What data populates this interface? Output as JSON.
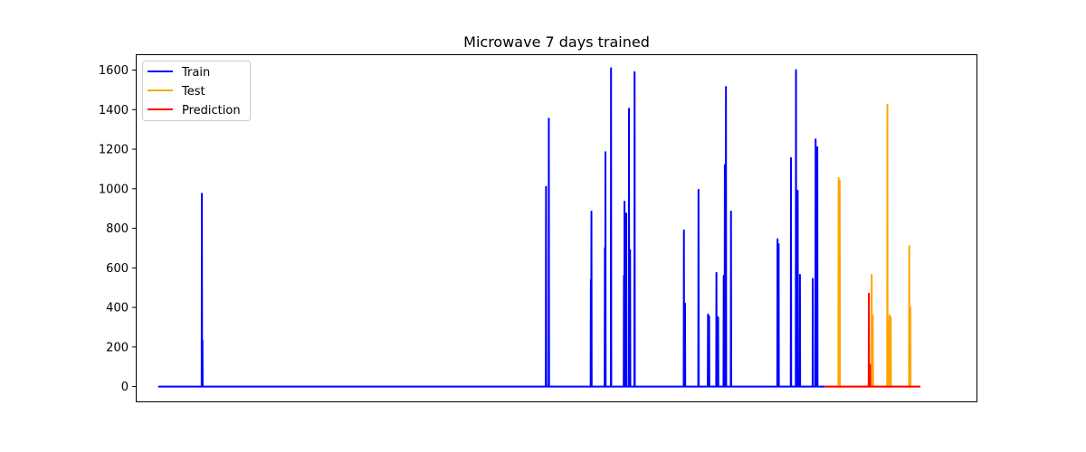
{
  "chart_data": {
    "type": "line",
    "title": "Microwave 7 days trained",
    "xlabel": "",
    "ylabel": "",
    "xlim": [
      -40,
      1460
    ],
    "ylim": [
      -75,
      1680
    ],
    "yticks": [
      0,
      200,
      400,
      600,
      800,
      1000,
      1200,
      1400,
      1600
    ],
    "grid": false,
    "legend_position": "top-left",
    "colors": {
      "Train": "#0000ff",
      "Test": "#ffa500",
      "Prediction": "#ff0000"
    },
    "series": [
      {
        "name": "Train",
        "color": "#0000ff",
        "baseline": 0,
        "x_range": [
          0,
          1190
        ],
        "spikes": [
          {
            "x": 78,
            "y": 975
          },
          {
            "x": 79,
            "y": 235
          },
          {
            "x": 692,
            "y": 1010
          },
          {
            "x": 697,
            "y": 1355
          },
          {
            "x": 772,
            "y": 540
          },
          {
            "x": 773,
            "y": 885
          },
          {
            "x": 797,
            "y": 700
          },
          {
            "x": 798,
            "y": 1185
          },
          {
            "x": 808,
            "y": 1610
          },
          {
            "x": 831,
            "y": 560
          },
          {
            "x": 832,
            "y": 935
          },
          {
            "x": 835,
            "y": 875
          },
          {
            "x": 840,
            "y": 1405
          },
          {
            "x": 842,
            "y": 690
          },
          {
            "x": 850,
            "y": 1590
          },
          {
            "x": 938,
            "y": 790
          },
          {
            "x": 940,
            "y": 420
          },
          {
            "x": 964,
            "y": 995
          },
          {
            "x": 981,
            "y": 365
          },
          {
            "x": 983,
            "y": 355
          },
          {
            "x": 996,
            "y": 575
          },
          {
            "x": 999,
            "y": 350
          },
          {
            "x": 1009,
            "y": 560
          },
          {
            "x": 1011,
            "y": 1120
          },
          {
            "x": 1013,
            "y": 1515
          },
          {
            "x": 1022,
            "y": 885
          },
          {
            "x": 1105,
            "y": 745
          },
          {
            "x": 1107,
            "y": 720
          },
          {
            "x": 1129,
            "y": 1155
          },
          {
            "x": 1138,
            "y": 1600
          },
          {
            "x": 1141,
            "y": 990
          },
          {
            "x": 1145,
            "y": 565
          },
          {
            "x": 1168,
            "y": 545
          },
          {
            "x": 1173,
            "y": 1250
          },
          {
            "x": 1176,
            "y": 1210
          }
        ]
      },
      {
        "name": "Test",
        "color": "#ffa500",
        "baseline": 0,
        "x_range": [
          1190,
          1360
        ],
        "spikes": [
          {
            "x": 1214,
            "y": 1055
          },
          {
            "x": 1216,
            "y": 1040
          },
          {
            "x": 1273,
            "y": 565
          },
          {
            "x": 1275,
            "y": 360
          },
          {
            "x": 1301,
            "y": 1425
          },
          {
            "x": 1303,
            "y": 330
          },
          {
            "x": 1305,
            "y": 360
          },
          {
            "x": 1307,
            "y": 350
          },
          {
            "x": 1340,
            "y": 710
          },
          {
            "x": 1342,
            "y": 400
          }
        ]
      },
      {
        "name": "Prediction",
        "color": "#ff0000",
        "baseline": 0,
        "x_range": [
          1190,
          1360
        ],
        "spikes": [
          {
            "x": 1268,
            "y": 470
          },
          {
            "x": 1270,
            "y": 110
          }
        ]
      }
    ]
  }
}
